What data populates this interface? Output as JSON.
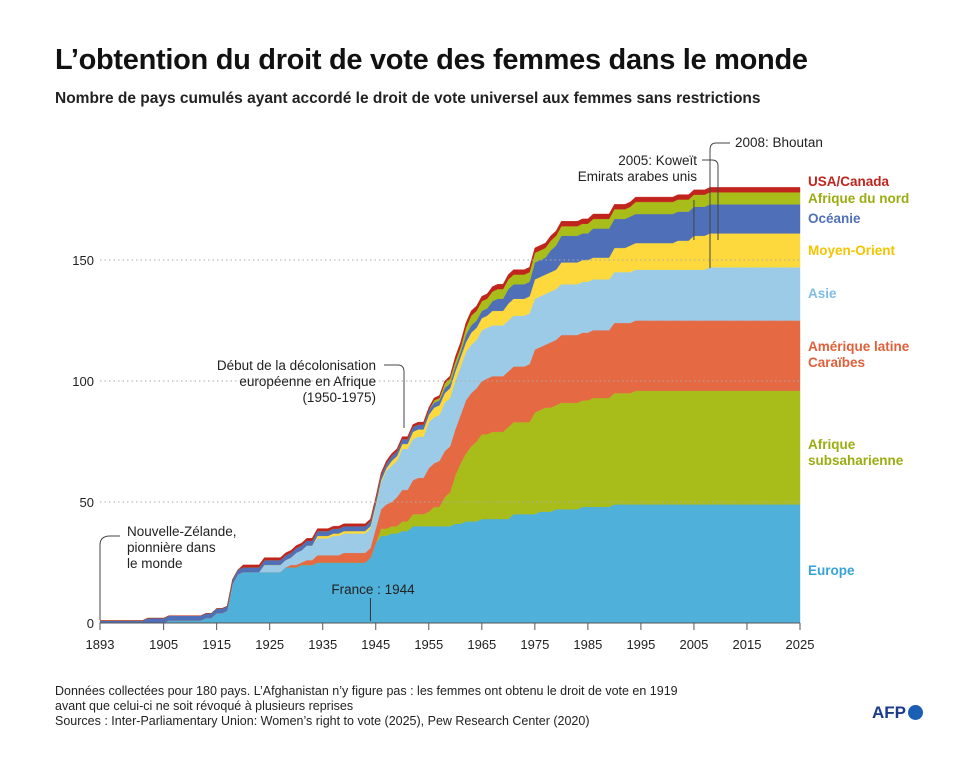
{
  "title": "L’obtention du droit de vote des femmes dans le monde",
  "subtitle": "Nombre de pays cumulés ayant accordé le droit de vote universel aux femmes sans restrictions",
  "notes": [
    "Données collectées pour 180 pays. L’Afghanistan n’y figure pas : les femmes ont obtenu le droit de vote en 1919",
    "avant que celui-ci ne soit révoqué à plusieurs reprises",
    "Sources : Inter-Parliamentary Union: Women’s right to vote (2025), Pew Research Center (2020)"
  ],
  "logo": "AFP",
  "chart_data": {
    "type": "area",
    "stacked": true,
    "xlim": [
      1893,
      2025
    ],
    "ylim": [
      0,
      180
    ],
    "x_ticks": [
      1893,
      1905,
      1915,
      1925,
      1935,
      1945,
      1955,
      1965,
      1975,
      1985,
      1995,
      2005,
      2015,
      2025
    ],
    "y_ticks": [
      0,
      50,
      100,
      150
    ],
    "grid": "horizontal dotted at 50, 100, 150",
    "legend": "right, labels at end of series",
    "series": [
      {
        "name": "Europe",
        "color": "#4fb0d9",
        "steps": [
          [
            1893,
            0
          ],
          [
            1906,
            1
          ],
          [
            1913,
            2
          ],
          [
            1915,
            4
          ],
          [
            1917,
            5
          ],
          [
            1918,
            16
          ],
          [
            1919,
            20
          ],
          [
            1920,
            21
          ],
          [
            1928,
            23
          ],
          [
            1931,
            24
          ],
          [
            1934,
            25
          ],
          [
            1944,
            27
          ],
          [
            1945,
            33
          ],
          [
            1946,
            36
          ],
          [
            1948,
            37
          ],
          [
            1950,
            38
          ],
          [
            1952,
            40
          ],
          [
            1960,
            41
          ],
          [
            1962,
            42
          ],
          [
            1965,
            43
          ],
          [
            1971,
            45
          ],
          [
            1976,
            46
          ],
          [
            1979,
            47
          ],
          [
            1984,
            48
          ],
          [
            1990,
            49
          ]
        ]
      },
      {
        "name": "Afrique subsaharienne",
        "color": "#a9bd1a",
        "steps": [
          [
            1893,
            0
          ],
          [
            1946,
            3
          ],
          [
            1950,
            4
          ],
          [
            1952,
            5
          ],
          [
            1955,
            6
          ],
          [
            1956,
            8
          ],
          [
            1958,
            12
          ],
          [
            1959,
            14
          ],
          [
            1960,
            20
          ],
          [
            1961,
            25
          ],
          [
            1962,
            28
          ],
          [
            1963,
            31
          ],
          [
            1964,
            33
          ],
          [
            1965,
            35
          ],
          [
            1967,
            36
          ],
          [
            1970,
            38
          ],
          [
            1975,
            42
          ],
          [
            1977,
            43
          ],
          [
            1980,
            44
          ],
          [
            1986,
            45
          ],
          [
            1990,
            46
          ],
          [
            1994,
            47
          ]
        ]
      },
      {
        "name": "Amérique latine Caraïbes",
        "color": "#e56a43",
        "steps": [
          [
            1893,
            0
          ],
          [
            1929,
            1
          ],
          [
            1932,
            2
          ],
          [
            1934,
            3
          ],
          [
            1939,
            4
          ],
          [
            1945,
            6
          ],
          [
            1946,
            8
          ],
          [
            1947,
            10
          ],
          [
            1949,
            12
          ],
          [
            1950,
            13
          ],
          [
            1952,
            14
          ],
          [
            1953,
            15
          ],
          [
            1955,
            18
          ],
          [
            1957,
            19
          ],
          [
            1961,
            20
          ],
          [
            1962,
            22
          ],
          [
            1966,
            23
          ],
          [
            1974,
            24
          ],
          [
            1975,
            26
          ],
          [
            1978,
            27
          ],
          [
            1980,
            28
          ],
          [
            1990,
            29
          ]
        ]
      },
      {
        "name": "Asie",
        "color": "#9ccbe8",
        "steps": [
          [
            1893,
            0
          ],
          [
            1924,
            3
          ],
          [
            1930,
            5
          ],
          [
            1932,
            6
          ],
          [
            1934,
            7
          ],
          [
            1937,
            8
          ],
          [
            1945,
            9
          ],
          [
            1946,
            11
          ],
          [
            1947,
            14
          ],
          [
            1948,
            15
          ],
          [
            1950,
            17
          ],
          [
            1955,
            19
          ],
          [
            1958,
            20
          ],
          [
            1965,
            21
          ],
          [
            2008,
            22
          ]
        ]
      },
      {
        "name": "Moyen-Orient",
        "color": "#fdd93d",
        "steps": [
          [
            1893,
            0
          ],
          [
            1934,
            1
          ],
          [
            1948,
            2
          ],
          [
            1952,
            3
          ],
          [
            1956,
            4
          ],
          [
            1963,
            5
          ],
          [
            1967,
            6
          ],
          [
            1970,
            7
          ],
          [
            1975,
            8
          ],
          [
            1980,
            9
          ],
          [
            1990,
            10
          ],
          [
            1993,
            11
          ],
          [
            2002,
            12
          ],
          [
            2005,
            14
          ]
        ]
      },
      {
        "name": "Océanie",
        "color": "#4f6fb8",
        "steps": [
          [
            1893,
            1
          ],
          [
            1902,
            2
          ],
          [
            1962,
            3
          ],
          [
            1967,
            4
          ],
          [
            1968,
            5
          ],
          [
            1970,
            6
          ],
          [
            1975,
            7
          ],
          [
            1978,
            9
          ],
          [
            1979,
            10
          ],
          [
            1980,
            11
          ],
          [
            1986,
            12
          ]
        ]
      },
      {
        "name": "Afrique du nord",
        "color": "#a9bd1a",
        "steps": [
          [
            1893,
            0
          ],
          [
            1956,
            1
          ],
          [
            1958,
            2
          ],
          [
            1962,
            3
          ],
          [
            1963,
            4
          ],
          [
            1994,
            5
          ]
        ]
      },
      {
        "name": "USA/Canada",
        "color": "#c0241c",
        "steps": [
          [
            1893,
            0
          ],
          [
            1920,
            1
          ],
          [
            1960,
            2
          ]
        ]
      }
    ],
    "label_lines": {
      "Europe": [
        "Europe"
      ],
      "Afrique subsaharienne": [
        "Afrique",
        "subsaharienne"
      ],
      "Amérique latine Caraïbes": [
        "Amérique latine",
        "Caraïbes"
      ],
      "Asie": [
        "Asie"
      ],
      "Moyen-Orient": [
        "Moyen-Orient"
      ],
      "Océanie": [
        "Océanie"
      ],
      "Afrique du nord": [
        "Afrique du nord"
      ],
      "USA/Canada": [
        "USA/Canada"
      ]
    },
    "annotations": [
      {
        "x": 1893,
        "lines": [
          "Nouvelle-Zélande,",
          "pionnière dans",
          "le monde"
        ]
      },
      {
        "x": 1944,
        "lines": [
          "France : 1944"
        ]
      },
      {
        "x": 1950,
        "lines": [
          "Début de la décolonisation",
          "européenne en Afrique",
          "(1950-1975)"
        ]
      },
      {
        "x": 2005,
        "lines": [
          "2005: Koweït",
          "Emirats arabes unis"
        ]
      },
      {
        "x": 2008,
        "lines": [
          "2008: Bhoutan"
        ]
      }
    ]
  }
}
